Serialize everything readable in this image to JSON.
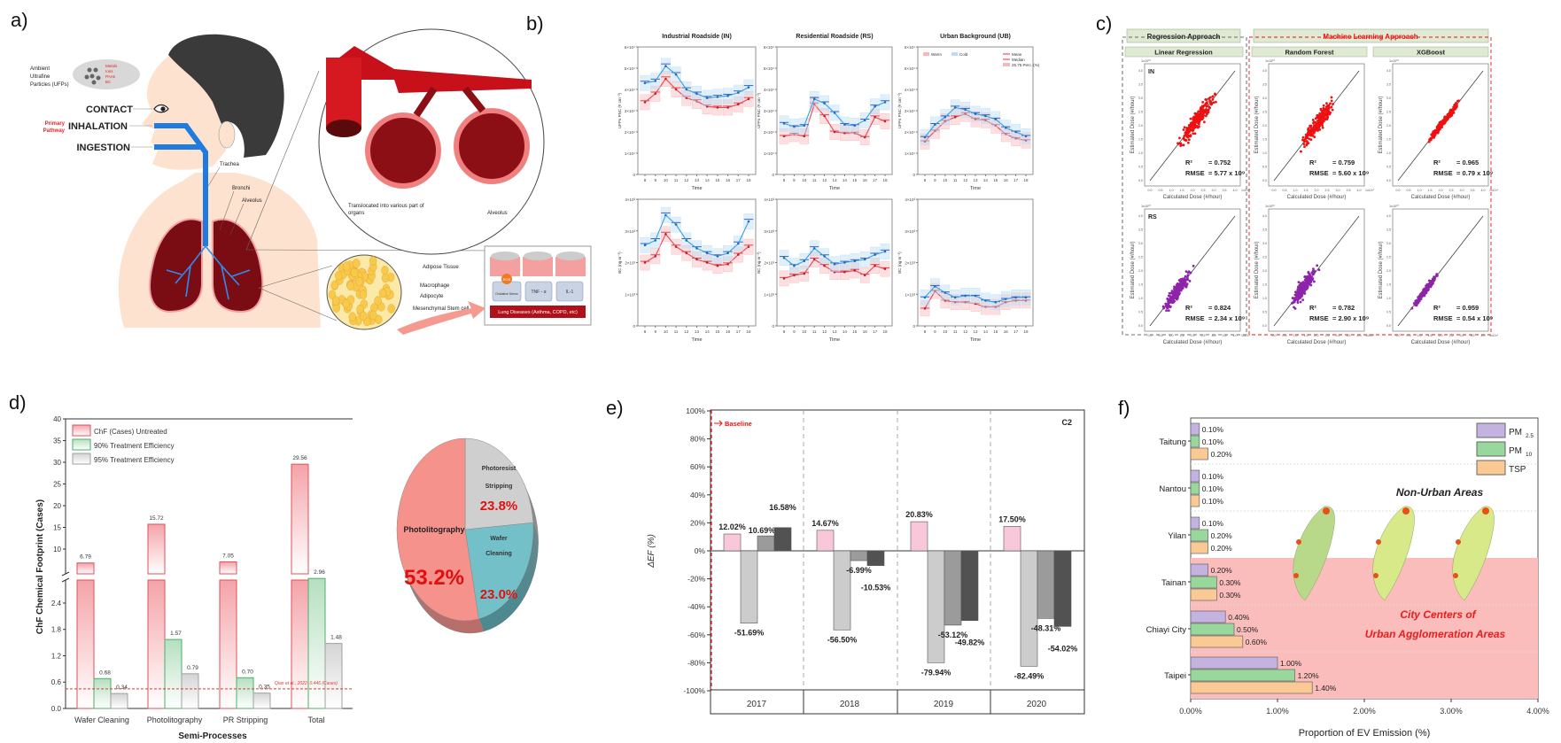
{
  "panel_labels": [
    "a)",
    "b)",
    "c)",
    "d)",
    "e)",
    "f)"
  ],
  "illustration": {
    "ufp_line1": "Ambient",
    "ufp_line2": "Ultrafine",
    "ufp_line3": "Particles (UFPs)",
    "cloud_items": [
      "Metals",
      "Ions",
      "PAHs",
      "BC"
    ],
    "contact": "CONTACT",
    "inhalation": "INHALATION",
    "ingestion": "INGESTION",
    "primary_line1": "Primary",
    "primary_line2": "Pathway",
    "trachea": "Trachea",
    "bronchi": "Bronchi",
    "alveolus_lung": "Alveolus",
    "translocated_line1": "Translocated into various part of",
    "translocated_line2": "organs",
    "alveolus_zoom": "Alveolus",
    "adipose_tissue": "Adipose Tissue",
    "macrophage": "Macrophage",
    "adipocyte": "Adipocyte",
    "stem_cell": "Mesenchymal Stem cell",
    "ros": "ROS",
    "oxidative_stress": "Oxidative Stress",
    "tnf": "TNF - α",
    "il1": "IL-1",
    "lung_diseases": "Lung Diseases (Asthma, COPD, etc)",
    "colors": {
      "skin": "#fde3cf",
      "hair": "#3a3a3a",
      "lung": "#7a0d14",
      "airway": "#1f7be0",
      "vessel": "#c8101a"
    }
  },
  "panel_c_headers": {
    "regression": "Regression Approach",
    "ml": "Machine Learning Approach",
    "methods": [
      "Linear Regression",
      "Random Forest",
      "XGBoost"
    ]
  },
  "chart_data": [
    {
      "type": "line",
      "title": "Industrial Roadside (IN)",
      "xlabel": "Time",
      "ylabel": "UFPs PNC (# cm⁻³)",
      "x": [
        8,
        9,
        10,
        11,
        12,
        13,
        14,
        15,
        16,
        17,
        18
      ],
      "ylim": [
        0,
        60000
      ],
      "y_ticks": [
        "0",
        "1×10⁴",
        "2×10⁴",
        "3×10⁴",
        "4×10⁴",
        "5×10⁴",
        "6×10⁴"
      ],
      "series": [
        {
          "name": "Warm",
          "color": "#e8474f",
          "values": [
            34000,
            38000,
            45000,
            40000,
            36000,
            34500,
            32000,
            31500,
            31500,
            33000,
            35500
          ]
        },
        {
          "name": "Cold",
          "color": "#3a9fe0",
          "values": [
            43000,
            44000,
            51000,
            47000,
            40000,
            38000,
            36000,
            36500,
            37000,
            38500,
            41000
          ]
        }
      ]
    },
    {
      "type": "line",
      "title": "Residential Roadside (RS)",
      "xlabel": "Time",
      "ylabel": "UFPs PNC (# cm⁻³)",
      "x": [
        8,
        9,
        10,
        11,
        12,
        13,
        14,
        15,
        16,
        17,
        18
      ],
      "ylim": [
        0,
        60000
      ],
      "y_ticks": [
        "0",
        "1×10⁴",
        "2×10⁴",
        "3×10⁴",
        "4×10⁴",
        "5×10⁴",
        "6×10⁴"
      ],
      "series": [
        {
          "name": "Warm",
          "color": "#e8474f",
          "values": [
            18000,
            19000,
            18000,
            33000,
            27500,
            20000,
            19500,
            19500,
            17500,
            27000,
            25000
          ]
        },
        {
          "name": "Cold",
          "color": "#3a9fe0",
          "values": [
            24000,
            22500,
            23000,
            35500,
            33500,
            29000,
            23500,
            23000,
            25500,
            32000,
            34000
          ]
        }
      ]
    },
    {
      "type": "line",
      "title": "Urban Background (UB)",
      "xlabel": "Time",
      "ylabel": "UFPs PNC (# cm⁻³)",
      "x": [
        8,
        9,
        10,
        11,
        12,
        13,
        14,
        15,
        16,
        17,
        18
      ],
      "ylim": [
        0,
        60000
      ],
      "y_ticks": [
        "0",
        "1×10⁴",
        "2×10⁴",
        "3×10⁴",
        "4×10⁴",
        "5×10⁴",
        "6×10⁴"
      ],
      "legend": [
        "Warm",
        "Cold",
        "Mean",
        "Median",
        "25,75 Perc. (%)"
      ],
      "series": [
        {
          "name": "Warm",
          "color": "#e8474f",
          "values": [
            15500,
            20500,
            25000,
            27000,
            28500,
            26000,
            25500,
            23000,
            19000,
            17000,
            16000
          ]
        },
        {
          "name": "Cold",
          "color": "#3a9fe0",
          "values": [
            17500,
            23500,
            27000,
            31500,
            30500,
            28500,
            27500,
            26000,
            22000,
            20000,
            18000
          ]
        }
      ]
    },
    {
      "type": "line",
      "title": "",
      "xlabel": "Time",
      "ylabel": "BC (ng m⁻³)",
      "x": [
        8,
        9,
        10,
        11,
        12,
        13,
        14,
        15,
        16,
        17,
        18
      ],
      "ylim": [
        0,
        4000
      ],
      "y_ticks": [
        "0",
        "1×10³",
        "2×10³",
        "3×10³",
        "4×10³"
      ],
      "series": [
        {
          "name": "Warm",
          "color": "#e8474f",
          "values": [
            2000,
            2200,
            2900,
            2500,
            2300,
            2100,
            2000,
            1900,
            1950,
            2250,
            2500
          ]
        },
        {
          "name": "Cold",
          "color": "#3a9fe0",
          "values": [
            2550,
            2700,
            3500,
            3200,
            2700,
            2450,
            2300,
            2200,
            2300,
            2600,
            3300
          ]
        }
      ]
    },
    {
      "type": "line",
      "title": "",
      "xlabel": "Time",
      "ylabel": "BC (ng m⁻³)",
      "x": [
        8,
        9,
        10,
        11,
        12,
        13,
        14,
        15,
        16,
        17,
        18
      ],
      "ylim": [
        0,
        4000
      ],
      "y_ticks": [
        "0",
        "1×10³",
        "2×10³",
        "3×10³",
        "4×10³"
      ],
      "series": [
        {
          "name": "Warm",
          "color": "#e8474f",
          "values": [
            1500,
            1600,
            1650,
            2100,
            1900,
            1700,
            1700,
            1750,
            1600,
            1900,
            1800
          ]
        },
        {
          "name": "Cold",
          "color": "#3a9fe0",
          "values": [
            2150,
            1900,
            2050,
            2450,
            2200,
            1950,
            2000,
            2050,
            2100,
            2250,
            2350
          ]
        }
      ]
    },
    {
      "type": "line",
      "title": "",
      "xlabel": "Time",
      "ylabel": "BC (ng m⁻³)",
      "x": [
        8,
        9,
        10,
        11,
        12,
        13,
        14,
        15,
        16,
        17,
        18
      ],
      "ylim": [
        0,
        4000
      ],
      "y_ticks": [
        "0",
        "1×10³",
        "2×10³",
        "3×10³",
        "4×10³"
      ],
      "series": [
        {
          "name": "Warm",
          "color": "#e8474f",
          "values": [
            550,
            1100,
            800,
            750,
            750,
            700,
            600,
            600,
            750,
            800,
            800
          ]
        },
        {
          "name": "Cold",
          "color": "#3a9fe0",
          "values": [
            900,
            1250,
            1050,
            900,
            950,
            950,
            800,
            750,
            850,
            900,
            900
          ]
        }
      ]
    },
    {
      "type": "scatter",
      "method": "Linear Regression",
      "site": "IN",
      "xlabel": "Calculated Dose (#/hour)",
      "ylabel": "Estimated Dose (#/hour)",
      "scale": "1x10¹⁰",
      "xlim": [
        0,
        4
      ],
      "ylim": [
        0,
        4
      ],
      "ticks": [
        "0.0",
        "0.5",
        "1.0",
        "1.5",
        "2.0",
        "2.5",
        "3.0",
        "3.5",
        "4.0"
      ],
      "r2_label": "R²",
      "r2": "= 0.752",
      "rmse_label": "RMSE",
      "rmse": "= 5.77 x 10⁹",
      "r2_value": 0.752,
      "x_range": [
        1.1,
        3.3
      ],
      "color": "#ee1111"
    },
    {
      "type": "scatter",
      "method": "Random Forest",
      "site": "",
      "xlabel": "Calculated Dose (#/hour)",
      "ylabel": "Estimated Dose (#/hour)",
      "scale": "1x10¹⁰",
      "xlim": [
        0,
        4
      ],
      "ylim": [
        0,
        4
      ],
      "ticks": [
        "0.0",
        "0.5",
        "1.0",
        "1.5",
        "2.0",
        "2.5",
        "3.0",
        "3.5",
        "4.0"
      ],
      "r2_label": "R²",
      "r2": "= 0.759",
      "rmse_label": "RMSE",
      "rmse": "= 5.60 x 10⁹",
      "r2_value": 0.759,
      "x_range": [
        1.0,
        3.1
      ],
      "color": "#ee1111"
    },
    {
      "type": "scatter",
      "method": "XGBoost",
      "site": "",
      "xlabel": "Calculated Dose (#/hour)",
      "ylabel": "Estimated Dose (#/hour)",
      "scale": "1x10¹⁰",
      "xlim": [
        0,
        4
      ],
      "ylim": [
        0,
        4
      ],
      "ticks": [
        "0.0",
        "0.5",
        "1.0",
        "1.5",
        "2.0",
        "2.5",
        "3.0",
        "3.5",
        "4.0"
      ],
      "r2_label": "R²",
      "r2": "= 0.965",
      "rmse_label": "RMSE",
      "rmse": "= 0.79 x 10⁹",
      "r2_value": 0.965,
      "x_range": [
        1.0,
        3.3
      ],
      "color": "#ee1111"
    },
    {
      "type": "scatter",
      "method": "Linear Regression",
      "site": "RS",
      "xlabel": "Calculated Dose (#/hour)",
      "ylabel": "Estimated Dose (#/hour)",
      "scale": "1x10¹⁰",
      "xlim": [
        0,
        4
      ],
      "ylim": [
        0,
        4
      ],
      "ticks": [
        "0.0",
        "0.5",
        "1.0",
        "1.5",
        "2.0",
        "2.5",
        "3.0",
        "3.5",
        "4.0"
      ],
      "r2_label": "R²",
      "r2": "= 0.824",
      "rmse_label": "RMSE",
      "rmse": "= 2.34 x 10⁹",
      "r2_value": 0.824,
      "x_range": [
        0.5,
        2.1
      ],
      "color": "#8e24aa"
    },
    {
      "type": "scatter",
      "method": "Random Forest",
      "site": "",
      "xlabel": "Calculated Dose (#/hour)",
      "ylabel": "Estimated Dose (#/hour)",
      "scale": "1x10¹⁰",
      "xlim": [
        0,
        4
      ],
      "ylim": [
        0,
        4
      ],
      "ticks": [
        "0.0",
        "0.5",
        "1.0",
        "1.5",
        "2.0",
        "2.5",
        "3.0",
        "3.5",
        "4.0"
      ],
      "r2_label": "R²",
      "r2": "= 0.782",
      "rmse_label": "RMSE",
      "rmse": "= 2.90 x 10⁹",
      "r2_value": 0.782,
      "x_range": [
        0.6,
        2.2
      ],
      "color": "#8e24aa"
    },
    {
      "type": "scatter",
      "method": "XGBoost",
      "site": "",
      "xlabel": "Calculated Dose (#/hour)",
      "ylabel": "Estimated Dose (#/hour)",
      "scale": "1x10¹⁰",
      "xlim": [
        0,
        4
      ],
      "ylim": [
        0,
        4
      ],
      "ticks": [
        "0.0",
        "0.5",
        "1.0",
        "1.5",
        "2.0",
        "2.5",
        "3.0",
        "3.5",
        "4.0"
      ],
      "r2_label": "R²",
      "r2": "= 0.959",
      "rmse_label": "RMSE",
      "rmse": "= 0.54 x 10⁹",
      "r2_value": 0.959,
      "x_range": [
        0.5,
        2.1
      ],
      "color": "#8e24aa"
    },
    {
      "type": "bar",
      "categories": [
        "Wafer Cleaning",
        "Photolitography",
        "PR Stripping",
        "Total"
      ],
      "series": [
        {
          "name": "ChF (Cases) Untreated",
          "color": "#f4a3a8",
          "stroke": "#e0505a",
          "values": [
            6.79,
            15.72,
            7.05,
            29.56
          ]
        },
        {
          "name": "90% Treatment Efficiency",
          "color": "#b5dfc0",
          "stroke": "#4caf6a",
          "values": [
            0.68,
            1.57,
            0.7,
            2.96
          ]
        },
        {
          "name": "95% Treatment Efficiency",
          "color": "#d4d4d4",
          "stroke": "#a0a0a0",
          "values": [
            0.34,
            0.79,
            0.35,
            1.48
          ]
        }
      ],
      "value_labels": [
        [
          "6.79",
          "15.72",
          "7.05",
          "29.56"
        ],
        [
          "0.68",
          "1.57",
          "0.70",
          "2.96"
        ],
        [
          "0.34",
          "0.79",
          "0.35",
          "1.48"
        ]
      ],
      "ylabel": "ChF Chemical Footprint (Cases)",
      "xlabel": "Semi-Processes",
      "y_axis_break": [
        2.96,
        5.5
      ],
      "y_ticks_lower": [
        "0.0",
        "0.6",
        "1.2",
        "1.8",
        "2.4"
      ],
      "y_ticks_upper": [
        "10",
        "15",
        "20",
        "25",
        "30",
        "35",
        "40"
      ],
      "reference_line": {
        "value": 0.446,
        "label": "Qian et al., 2022: 0.446 (Cases)",
        "color": "#e53935"
      }
    },
    {
      "type": "pie",
      "slices": [
        {
          "label_line1": "Photoresist",
          "label_line2": "Stripping",
          "value": 23.8,
          "text": "23.8%",
          "color": "#cfcfcf"
        },
        {
          "label_line1": "Wafer",
          "label_line2": "Cleaning",
          "value": 23.0,
          "text": "23.0%",
          "color": "#74c0c8"
        },
        {
          "label_line1": "Photolitography",
          "label_line2": "",
          "value": 53.2,
          "text": "53.2%",
          "color": "#f6928c"
        }
      ]
    },
    {
      "type": "bar",
      "categories": [
        "2017",
        "2018",
        "2019",
        "2020"
      ],
      "ylabel": "ΔEF (%)",
      "ylim": [
        -100,
        100
      ],
      "y_ticks": [
        "-100%",
        "-80%",
        "-60%",
        "-40%",
        "-20%",
        "0%",
        "20%",
        "40%",
        "60%",
        "80%",
        "100%"
      ],
      "annotation": "C2",
      "baseline_label": "Baseline",
      "series": [
        {
          "color": "#f9c7da",
          "values": [
            12.02,
            14.67,
            20.83,
            17.5
          ],
          "labels": [
            "12.02%",
            "14.67%",
            "20.83%",
            "17.50%"
          ]
        },
        {
          "color": "#cccccc",
          "values": [
            -51.69,
            -56.5,
            -79.94,
            -82.49
          ],
          "labels": [
            "-51.69%",
            "-56.50%",
            "-79.94%",
            "-82.49%"
          ]
        },
        {
          "color": "#9b9b9b",
          "values": [
            10.69,
            -6.99,
            -53.12,
            -48.31
          ],
          "labels": [
            "10.69%",
            "-6.99%",
            "-53.12%",
            "-48.31%"
          ]
        },
        {
          "color": "#525252",
          "values": [
            16.58,
            -10.53,
            -49.82,
            -54.02
          ],
          "labels": [
            "16.58%",
            "-10.53%",
            "-49.82%",
            "-54.02%"
          ]
        }
      ]
    },
    {
      "type": "barh",
      "categories": [
        "Taitung",
        "Nantou",
        "Yilan",
        "Tainan",
        "Chiayi City",
        "Taipei"
      ],
      "xlabel": "Proportion of EV Emission (%)",
      "xlim": [
        0,
        4
      ],
      "x_ticks": [
        "0.00%",
        "1.00%",
        "2.00%",
        "3.00%",
        "4.00%"
      ],
      "series": [
        {
          "name": "PM",
          "sub": "2.5",
          "color": "#c4b3e0",
          "values": [
            0.1,
            0.1,
            0.1,
            0.2,
            0.4,
            1.0
          ],
          "labels": [
            "0.10%",
            "0.10%",
            "0.10%",
            "0.20%",
            "0.40%",
            "1.00%"
          ]
        },
        {
          "name": "PM",
          "sub": "10",
          "color": "#98d89c",
          "values": [
            0.1,
            0.1,
            0.2,
            0.3,
            0.5,
            1.2
          ],
          "labels": [
            "0.10%",
            "0.10%",
            "0.20%",
            "0.30%",
            "0.50%",
            "1.20%"
          ]
        },
        {
          "name": "TSP",
          "sub": "",
          "color": "#fbc994",
          "values": [
            0.2,
            0.1,
            0.2,
            0.3,
            0.6,
            1.4
          ],
          "labels": [
            "0.20%",
            "0.10%",
            "0.20%",
            "0.30%",
            "0.60%",
            "1.40%"
          ]
        }
      ],
      "region_non_urban": "Non-Urban Areas",
      "region_urban_line1": "City Centers of",
      "region_urban_line2": "Urban Agglomeration Areas",
      "urban_color": "#fbbcbc"
    }
  ]
}
